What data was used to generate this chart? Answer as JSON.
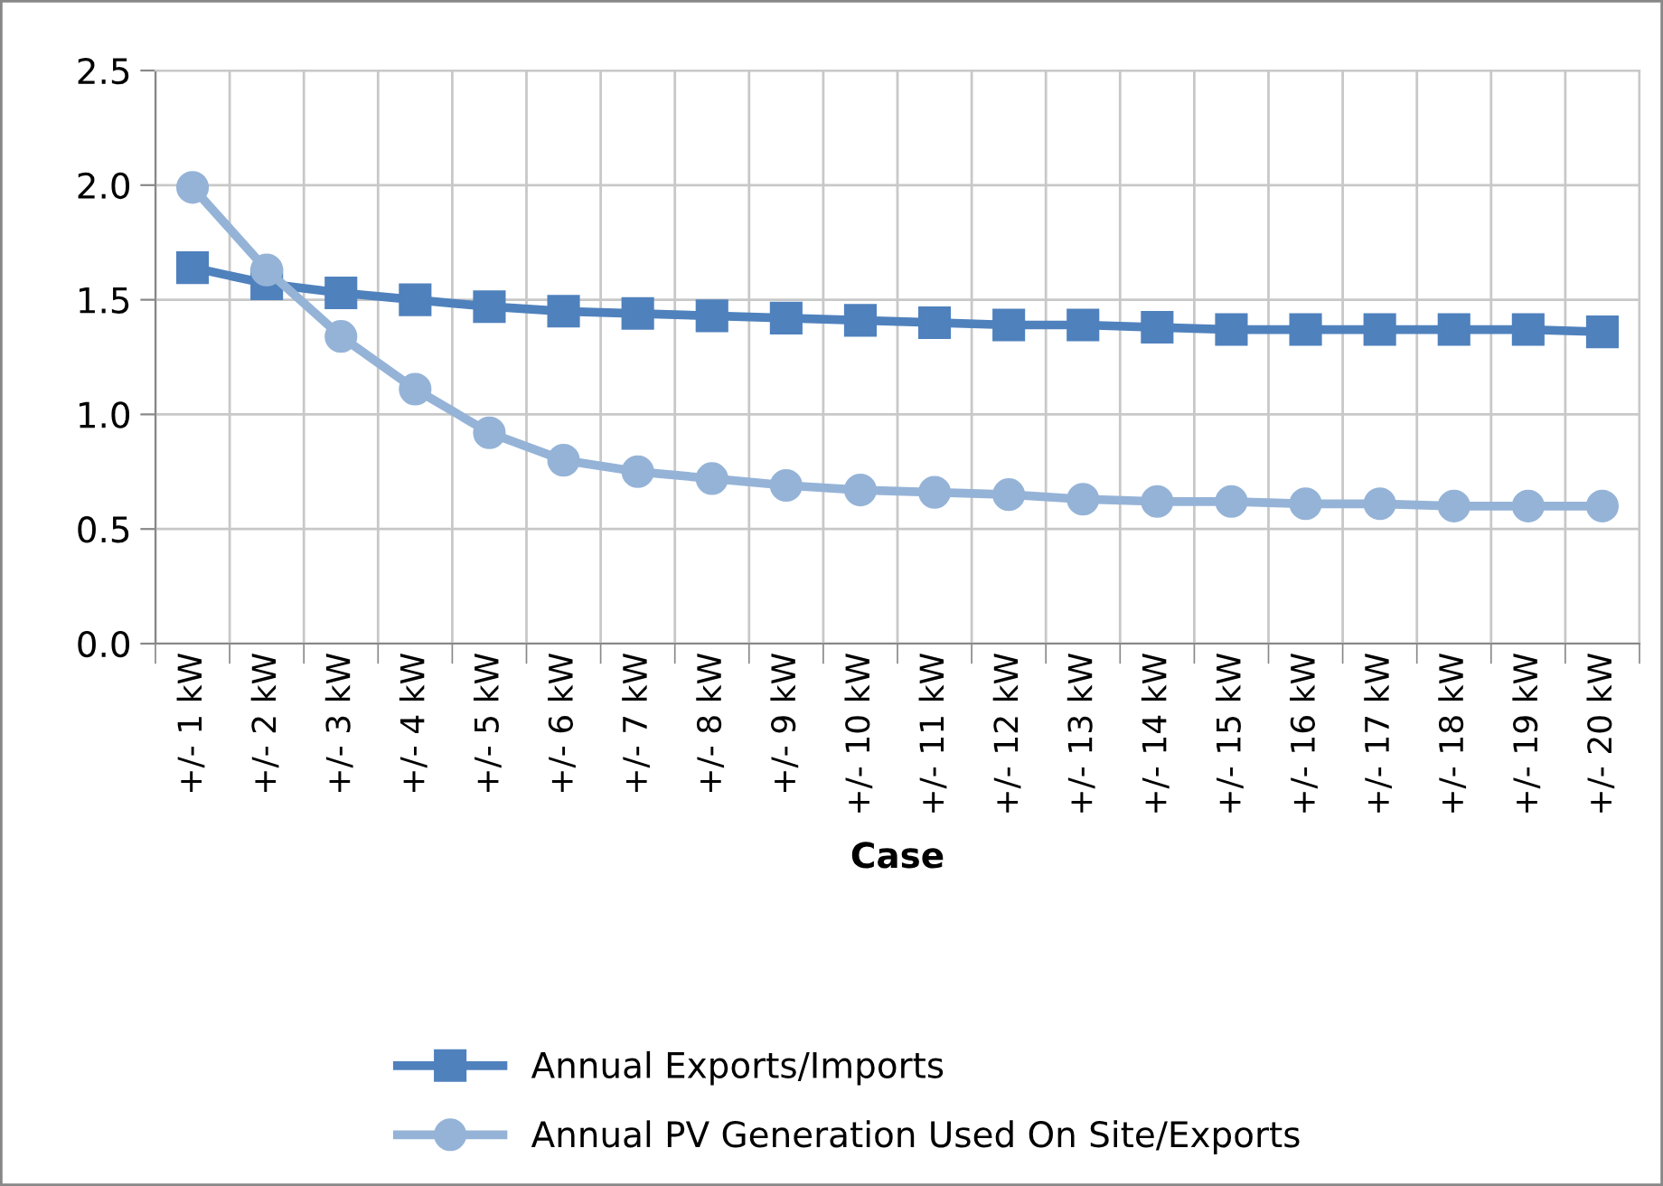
{
  "chart_data": {
    "type": "line",
    "xlabel": "Case",
    "categories": [
      "+/- 1 kW",
      "+/- 2 kW",
      "+/- 3 kW",
      "+/- 4 kW",
      "+/- 5 kW",
      "+/- 6 kW",
      "+/- 7 kW",
      "+/- 8 kW",
      "+/- 9 kW",
      "+/- 10 kW",
      "+/- 11 kW",
      "+/- 12 kW",
      "+/- 13 kW",
      "+/- 14 kW",
      "+/- 15 kW",
      "+/- 16 kW",
      "+/- 17 kW",
      "+/- 18 kW",
      "+/- 19 kW",
      "+/- 20 kW"
    ],
    "series": [
      {
        "name": "Annual Exports/Imports",
        "color": "#4f81bd",
        "marker": "square",
        "values": [
          1.64,
          1.57,
          1.53,
          1.5,
          1.47,
          1.45,
          1.44,
          1.43,
          1.42,
          1.41,
          1.4,
          1.39,
          1.39,
          1.38,
          1.37,
          1.37,
          1.37,
          1.37,
          1.37,
          1.36
        ]
      },
      {
        "name": "Annual PV Generation Used On Site/Exports",
        "color": "#95b3d7",
        "marker": "circle",
        "values": [
          1.99,
          1.63,
          1.34,
          1.11,
          0.92,
          0.8,
          0.75,
          0.72,
          0.69,
          0.67,
          0.66,
          0.65,
          0.63,
          0.62,
          0.62,
          0.61,
          0.61,
          0.6,
          0.6,
          0.6
        ]
      }
    ],
    "ylim": [
      0,
      2.5
    ],
    "yticks": [
      {
        "value": 0,
        "label": "0.0"
      },
      {
        "value": 0.5,
        "label": "0.5"
      },
      {
        "value": 1,
        "label": "1.0"
      },
      {
        "value": 1.5,
        "label": "1.5"
      },
      {
        "value": 2,
        "label": "2.0"
      },
      {
        "value": 2.5,
        "label": "2.5"
      }
    ],
    "grid": true,
    "legend": "bottom",
    "line_style": "solid"
  }
}
